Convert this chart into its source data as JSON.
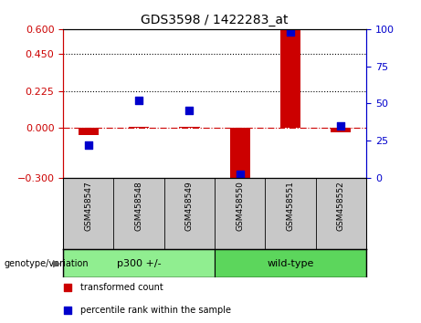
{
  "title": "GDS3598 / 1422283_at",
  "samples": [
    "GSM458547",
    "GSM458548",
    "GSM458549",
    "GSM458550",
    "GSM458551",
    "GSM458552"
  ],
  "transformed_count": [
    -0.04,
    0.01,
    0.01,
    -0.305,
    0.595,
    -0.025
  ],
  "percentile_rank": [
    22,
    52,
    45,
    2,
    98,
    35
  ],
  "ylim_left": [
    -0.3,
    0.6
  ],
  "ylim_right": [
    0,
    100
  ],
  "yticks_left": [
    -0.3,
    0.0,
    0.225,
    0.45,
    0.6
  ],
  "yticks_right": [
    0,
    25,
    50,
    75,
    100
  ],
  "hlines": [
    0.225,
    0.45
  ],
  "hline_zero": 0.0,
  "groups": [
    {
      "label": "p300 +/-",
      "indices": [
        0,
        1,
        2
      ],
      "color": "#90EE90"
    },
    {
      "label": "wild-type",
      "indices": [
        3,
        4,
        5
      ],
      "color": "#5CD65C"
    }
  ],
  "bar_color": "#CC0000",
  "marker_color": "#0000CC",
  "zero_line_color": "#CC0000",
  "dotted_line_color": "#000000",
  "bg_color": "#FFFFFF",
  "plot_bg_color": "#FFFFFF",
  "tick_label_color_left": "#CC0000",
  "tick_label_color_right": "#0000CC",
  "bar_width": 0.4,
  "marker_size": 6,
  "genotype_label": "genotype/variation",
  "legend_items": [
    "transformed count",
    "percentile rank within the sample"
  ]
}
